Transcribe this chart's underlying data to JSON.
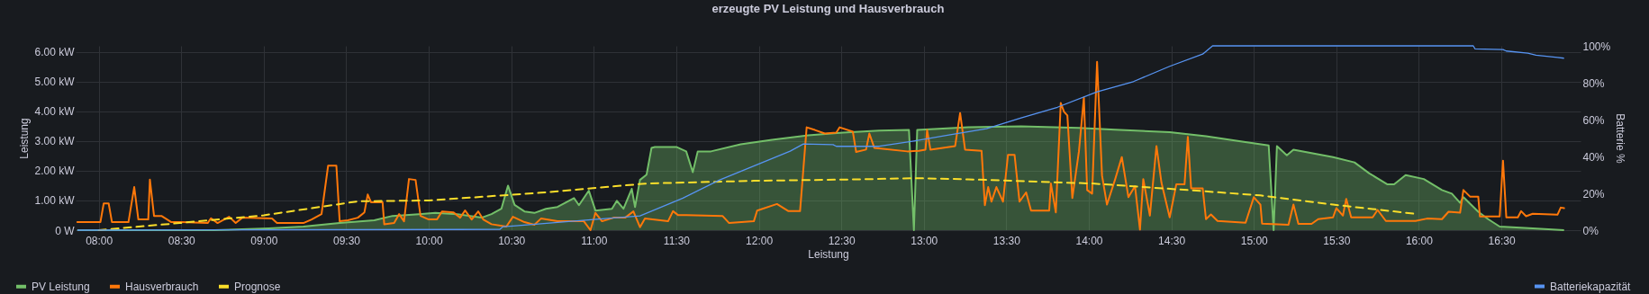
{
  "chart_data": {
    "type": "line",
    "title": "erzeugte PV Leistung und Hausverbrauch",
    "xlabel": "Leistung",
    "ylabel": "Leistung",
    "y2label": "Batterie %",
    "xlim": [
      7.86,
      16.98
    ],
    "xticks": [
      {
        "value": 8,
        "label": "08:00"
      },
      {
        "value": 8.5,
        "label": "08:30"
      },
      {
        "value": 9,
        "label": "09:00"
      },
      {
        "value": 9.5,
        "label": "09:30"
      },
      {
        "value": 10,
        "label": "10:00"
      },
      {
        "value": 10.5,
        "label": "10:30"
      },
      {
        "value": 11,
        "label": "11:00"
      },
      {
        "value": 11.5,
        "label": "11:30"
      },
      {
        "value": 12,
        "label": "12:00"
      },
      {
        "value": 12.5,
        "label": "12:30"
      },
      {
        "value": 13,
        "label": "13:00"
      },
      {
        "value": 13.5,
        "label": "13:30"
      },
      {
        "value": 14,
        "label": "14:00"
      },
      {
        "value": 14.5,
        "label": "14:30"
      },
      {
        "value": 15,
        "label": "15:00"
      },
      {
        "value": 15.5,
        "label": "15:30"
      },
      {
        "value": 16,
        "label": "16:00"
      },
      {
        "value": 16.5,
        "label": "16:30"
      }
    ],
    "ylim": [
      0,
      6.2
    ],
    "yticks": [
      {
        "value": 0,
        "label": "0 W"
      },
      {
        "value": 1,
        "label": "1.00 kW"
      },
      {
        "value": 2,
        "label": "2.00 kW"
      },
      {
        "value": 3,
        "label": "3.00 kW"
      },
      {
        "value": 4,
        "label": "4.00 kW"
      },
      {
        "value": 5,
        "label": "5.00 kW"
      },
      {
        "value": 6,
        "label": "6.00 kW"
      }
    ],
    "y2lim": [
      0,
      100
    ],
    "y2ticks": [
      {
        "value": 0,
        "label": "0%"
      },
      {
        "value": 20,
        "label": "20%"
      },
      {
        "value": 40,
        "label": "40%"
      },
      {
        "value": 60,
        "label": "60%"
      },
      {
        "value": 80,
        "label": "80%"
      },
      {
        "value": 100,
        "label": "100%"
      }
    ],
    "grid": true,
    "legend": "bottom",
    "series": [
      {
        "name": "PV Leistung",
        "type": "area",
        "color": "#73bf69",
        "x": [
          7.87,
          8.7,
          9.03,
          9.24,
          9.46,
          9.67,
          9.78,
          9.94,
          10.04,
          10.17,
          10.32,
          10.38,
          10.44,
          10.48,
          10.52,
          10.58,
          10.64,
          10.71,
          10.78,
          10.88,
          10.91,
          10.97,
          11.01,
          11.11,
          11.14,
          11.18,
          11.23,
          11.25,
          11.28,
          11.32,
          11.35,
          11.37,
          11.5,
          11.56,
          11.6,
          11.63,
          11.71,
          11.89,
          12.08,
          12.3,
          12.51,
          12.73,
          12.91,
          12.94,
          12.96,
          13.27,
          13.59,
          13.94,
          14.16,
          14.49,
          14.71,
          14.93,
          15.09,
          15.12,
          15.14,
          15.2,
          15.24,
          15.48,
          15.61,
          15.7,
          15.81,
          15.85,
          15.92,
          16.03,
          16.14,
          16.2,
          16.25,
          16.27,
          16.36,
          16.42,
          16.49,
          16.69,
          16.88
        ],
        "values": [
          0,
          0,
          0.06,
          0.12,
          0.24,
          0.33,
          0.48,
          0.54,
          0.58,
          0.54,
          0.42,
          0.54,
          0.72,
          1.5,
          0.85,
          0.63,
          0.58,
          0.72,
          0.78,
          1.08,
          0.84,
          1.33,
          0.66,
          0.72,
          0.99,
          0.72,
          1.39,
          0.78,
          1.69,
          1.87,
          2.77,
          2.8,
          2.8,
          2.65,
          1.95,
          2.65,
          2.65,
          2.89,
          3.04,
          3.19,
          3.28,
          3.35,
          3.37,
          0,
          3.37,
          3.46,
          3.49,
          3.44,
          3.38,
          3.3,
          3.16,
          2.98,
          2.85,
          0,
          2.83,
          2.52,
          2.71,
          2.46,
          2.28,
          1.91,
          1.54,
          1.54,
          1.85,
          1.72,
          1.35,
          1.23,
          0.92,
          1.11,
          0.62,
          0.37,
          0.12,
          0.06,
          0
        ]
      },
      {
        "name": "Hausverbrauch",
        "color": "#ff780a",
        "x": [
          7.87,
          8.01,
          8.03,
          8.06,
          8.08,
          8.18,
          8.215,
          8.24,
          8.3,
          8.31,
          8.335,
          8.38,
          8.44,
          8.5,
          8.66,
          8.68,
          8.72,
          8.79,
          8.83,
          8.87,
          9.05,
          9.08,
          9.24,
          9.29,
          9.35,
          9.39,
          9.44,
          9.46,
          9.51,
          9.57,
          9.61,
          9.63,
          9.65,
          9.72,
          9.73,
          9.79,
          9.82,
          9.85,
          9.88,
          9.92,
          9.95,
          10.0,
          10.05,
          10.08,
          10.15,
          10.19,
          10.22,
          10.26,
          10.3,
          10.33,
          10.38,
          10.47,
          10.51,
          10.58,
          10.64,
          10.68,
          10.78,
          10.94,
          10.98,
          11.01,
          11.05,
          11.12,
          11.19,
          11.24,
          11.28,
          11.31,
          11.45,
          11.48,
          11.51,
          11.78,
          11.82,
          11.97,
          11.99,
          12.11,
          12.18,
          12.25,
          12.29,
          12.34,
          12.4,
          12.47,
          12.49,
          12.57,
          12.59,
          12.65,
          12.67,
          12.7,
          12.9,
          12.97,
          13.01,
          13.02,
          13.04,
          13.19,
          13.22,
          13.25,
          13.35,
          13.37,
          13.39,
          13.41,
          13.44,
          13.48,
          13.51,
          13.55,
          13.58,
          13.62,
          13.65,
          13.76,
          13.77,
          13.8,
          13.83,
          13.85,
          13.87,
          13.9,
          13.94,
          13.97,
          13.99,
          14.02,
          14.05,
          14.08,
          14.11,
          14.16,
          14.2,
          14.24,
          14.28,
          14.31,
          14.33,
          14.37,
          14.41,
          14.44,
          14.49,
          14.53,
          14.58,
          14.6,
          14.62,
          14.69,
          14.71,
          14.74,
          14.78,
          14.95,
          15.0,
          15.04,
          15.05,
          15.21,
          15.24,
          15.27,
          15.35,
          15.39,
          15.48,
          15.5,
          15.54,
          15.56,
          15.59,
          15.72,
          15.75,
          15.8,
          15.98,
          16.05,
          16.14,
          16.18,
          16.25,
          16.27,
          16.31,
          16.36,
          16.37,
          16.49,
          16.51,
          16.53,
          16.6,
          16.62,
          16.65,
          16.69,
          16.84,
          16.86,
          16.88
        ],
        "values": [
          0.27,
          0.27,
          0.9,
          0.9,
          0.27,
          0.27,
          1.45,
          0.36,
          0.36,
          1.7,
          0.48,
          0.48,
          0.27,
          0.27,
          0.24,
          0.4,
          0.24,
          0.45,
          0.24,
          0.42,
          0.39,
          0.24,
          0.24,
          0.36,
          0.54,
          2.17,
          2.17,
          0.3,
          0.33,
          0.42,
          0.6,
          1.2,
          0.94,
          0.94,
          0.2,
          0.24,
          0.54,
          0.3,
          1.72,
          1.69,
          0.48,
          0.36,
          0.36,
          0.63,
          0.6,
          0.42,
          0.66,
          0.36,
          0.63,
          0.36,
          0.2,
          0.12,
          0.45,
          0.27,
          0.18,
          0.39,
          0.3,
          0.3,
          0,
          0.58,
          0.3,
          0.42,
          0.42,
          0.63,
          0.1,
          0.39,
          0.3,
          0.64,
          0.51,
          0.48,
          0.24,
          0.3,
          0.66,
          0.88,
          0.64,
          0.64,
          3.46,
          3.37,
          3.25,
          3.28,
          3.46,
          3.31,
          2.63,
          2.71,
          3.25,
          2.77,
          2.65,
          2.67,
          2.71,
          3.37,
          2.71,
          2.83,
          3.94,
          2.71,
          2.67,
          0.84,
          1.45,
          0.96,
          1.45,
          0.96,
          2.53,
          2.53,
          0.96,
          1.27,
          0.66,
          0.66,
          1.57,
          0.6,
          4.28,
          3.98,
          3.86,
          1.08,
          2.65,
          4.46,
          1.35,
          1.23,
          5.66,
          1.84,
          0.86,
          1.72,
          2.46,
          1.11,
          1.48,
          0.02,
          1.72,
          0.49,
          2.83,
          1.6,
          0.43,
          1.54,
          1.54,
          3.14,
          1.41,
          1.41,
          0.37,
          0.53,
          0.31,
          0.25,
          1.11,
          0.86,
          0.22,
          0.18,
          0.86,
          0.21,
          0.21,
          0.37,
          0.43,
          0.74,
          0.49,
          1.05,
          0.43,
          0.43,
          0.68,
          0.31,
          0.31,
          0.39,
          0.37,
          0.62,
          0.59,
          1.35,
          1.13,
          1.13,
          0.46,
          0.46,
          2.34,
          0.43,
          0.43,
          0.64,
          0.47,
          0.55,
          0.52,
          0.76,
          0.74
        ]
      },
      {
        "name": "Prognose",
        "color": "#fade2a",
        "line_style": "dashed",
        "x": [
          8.0,
          8.49,
          9.0,
          9.57,
          10.0,
          10.68,
          11.32,
          11.97,
          12.62,
          12.94,
          13.27,
          13.7,
          14.02,
          14.6,
          15.04,
          15.48,
          15.98
        ],
        "values": [
          0,
          0.24,
          0.5,
          0.97,
          1.0,
          1.26,
          1.57,
          1.66,
          1.71,
          1.75,
          1.71,
          1.63,
          1.57,
          1.35,
          1.17,
          0.86,
          0.55
        ]
      },
      {
        "name": "Batteriekapazität",
        "color": "#5794f2",
        "axis": "y2",
        "x": [
          7.87,
          10.43,
          10.45,
          10.51,
          10.68,
          11.0,
          11.28,
          11.54,
          11.76,
          11.97,
          12.19,
          12.27,
          12.45,
          12.47,
          12.73,
          12.94,
          13.16,
          13.38,
          13.59,
          13.81,
          14.05,
          14.27,
          14.49,
          14.69,
          14.75,
          16.33,
          16.34,
          16.51,
          16.53,
          16.66,
          16.71,
          16.84,
          16.88
        ],
        "values": [
          0,
          0.4,
          1.9,
          2.3,
          3.5,
          5.8,
          7.7,
          17.4,
          27.1,
          34.8,
          42.9,
          46.8,
          46.4,
          45.5,
          45.5,
          48.4,
          51.8,
          55.1,
          60.9,
          66.7,
          75.1,
          80.6,
          88.9,
          95.5,
          100,
          100,
          98.4,
          98,
          97.2,
          96,
          94.9,
          93.7,
          93.3
        ]
      }
    ]
  }
}
